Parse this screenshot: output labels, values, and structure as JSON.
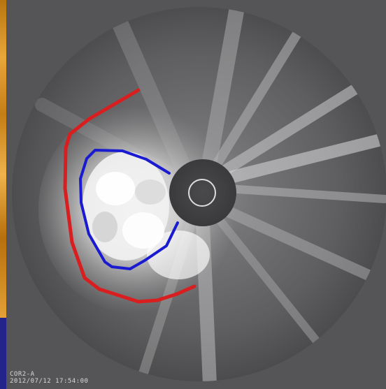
{
  "image": {
    "instrument_label": "COR2-A",
    "timestamp_label": "2012/07/12 17:54:00",
    "colors": {
      "outer_front": "#d81e1e",
      "inner_front": "#1a1ad0",
      "slide_background": "#23238c",
      "frame_background": "#555557"
    }
  }
}
